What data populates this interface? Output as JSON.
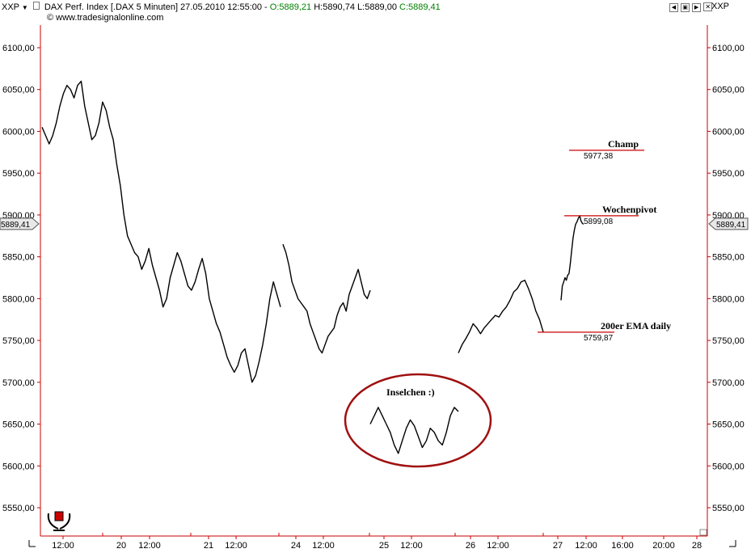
{
  "header": {
    "instrument_selector": "XXP",
    "instrument_selector_right": "XXP",
    "title": "DAX Perf. Index [.DAX  5 Minuten] 27.05.2010 12:55:00 -",
    "ohlc": {
      "o": "O:5889,21",
      "h": "H:5890,74",
      "l": "L:5889,00",
      "c": "C:5889,41"
    },
    "copyright": "© www.tradesignalonline.com"
  },
  "colors": {
    "open": "#008000",
    "close": "#008000",
    "level": "#cc0000",
    "ellipse": "#a01010",
    "axis": "#cc0000"
  },
  "chart_data": {
    "type": "line",
    "ylim": [
      5510,
      6140
    ],
    "y_ticks": [
      "6100,00",
      "6050,00",
      "6000,00",
      "5950,00",
      "5900,00",
      "5850,00",
      "5800,00",
      "5750,00",
      "5700,00",
      "5650,00",
      "5600,00",
      "5550,00"
    ],
    "y_tick_values": [
      6100,
      6050,
      6000,
      5950,
      5900,
      5850,
      5800,
      5750,
      5700,
      5650,
      5600,
      5550
    ],
    "x_ticks": [
      "12:00",
      "20",
      "12:00",
      "21",
      "12:00",
      "24",
      "12:00",
      "25",
      "12:00",
      "26",
      "12:00",
      "27",
      "12:00",
      "16:00",
      "20:00",
      "28"
    ],
    "current_price_label": "5889,41",
    "current_price": 5889.41,
    "series": [
      {
        "session": "19",
        "values": [
          6005,
          5995,
          5985,
          5995,
          6010,
          6030,
          6045,
          6055,
          6050,
          6040,
          6055,
          6060,
          6030,
          6010,
          5990,
          5995,
          6010,
          6035,
          6025,
          6005,
          5990,
          5960,
          5935,
          5900,
          5875,
          5865,
          5855,
          5850,
          5835,
          5845,
          5860,
          5840,
          5825,
          5810,
          5790,
          5800,
          5825,
          5840,
          5855,
          5845,
          5830,
          5815,
          5810,
          5820,
          5835,
          5848,
          5830,
          5800,
          5785,
          5770,
          5760,
          5745,
          5730,
          5720,
          5712,
          5720,
          5735,
          5740,
          5720,
          5700,
          5708,
          5725,
          5745,
          5770,
          5800,
          5820,
          5805,
          5790
        ]
      },
      {
        "session": "24",
        "values": [
          5865,
          5855,
          5840,
          5820,
          5810,
          5800,
          5795,
          5790,
          5785,
          5770,
          5760,
          5750,
          5740,
          5735,
          5745,
          5755,
          5760,
          5765,
          5780,
          5790,
          5795,
          5785,
          5805,
          5815,
          5825,
          5835,
          5820,
          5805,
          5800,
          5810
        ]
      },
      {
        "session": "25",
        "values": [
          5650,
          5660,
          5670,
          5660,
          5650,
          5640,
          5625,
          5615,
          5630,
          5645,
          5655,
          5648,
          5635,
          5622,
          5630,
          5645,
          5640,
          5630,
          5625,
          5640,
          5660,
          5670,
          5665
        ]
      },
      {
        "session": "26",
        "values": [
          5735,
          5745,
          5752,
          5760,
          5770,
          5765,
          5758,
          5765,
          5770,
          5775,
          5780,
          5778,
          5785,
          5790,
          5798,
          5808,
          5812,
          5820,
          5822,
          5812,
          5800,
          5785,
          5775,
          5760
        ]
      },
      {
        "session": "27",
        "values": [
          5798,
          5815,
          5820,
          5825,
          5822,
          5828,
          5830,
          5842,
          5858,
          5872,
          5882,
          5889,
          5892,
          5896,
          5899,
          5893,
          5890,
          5889
        ]
      }
    ],
    "levels": [
      {
        "name": "Champ",
        "value": 5977.38,
        "label": "5977,38"
      },
      {
        "name": "Wochenpivot",
        "value": 5899.08,
        "label": "5899,08"
      },
      {
        "name": "200er EMA daily",
        "value": 5759.87,
        "label": "5759,87"
      }
    ],
    "annotation": "Inselchen :)"
  }
}
